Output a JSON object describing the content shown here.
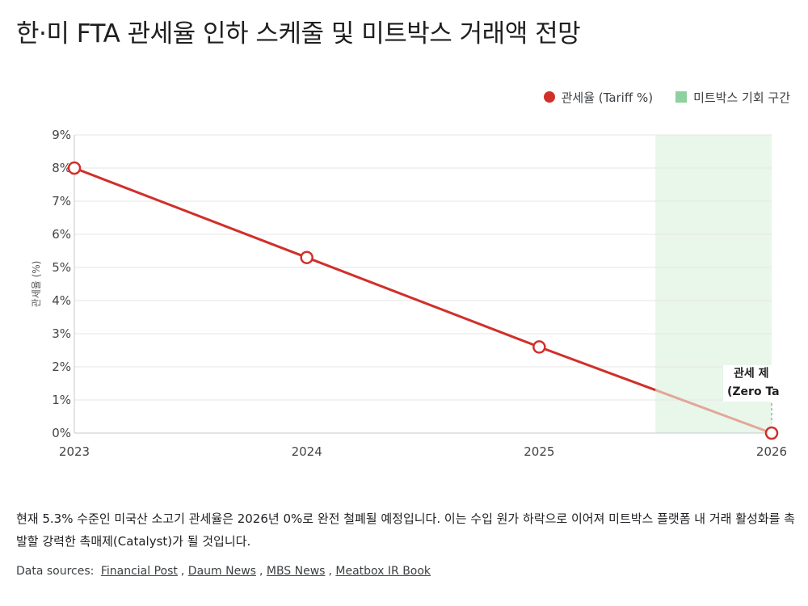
{
  "title": "한·미 FTA 관세율 인하 스케줄 및 미트박스 거래액 전망",
  "legend": {
    "series_label": "관세율 (Tariff %)",
    "zone_label": "미트박스 기회 구간"
  },
  "colors": {
    "line": "#d0302a",
    "line_faded": "#e0a89a",
    "zone": "#e9f6ea",
    "legend_zone": "#8fd19e",
    "grid": "#e6e6e6"
  },
  "chart_data": {
    "type": "line",
    "title": "",
    "xlabel": "",
    "ylabel": "관세율 (%)",
    "x": [
      2023,
      2024,
      2025,
      2026
    ],
    "series": [
      {
        "name": "관세율 (Tariff %)",
        "values": [
          8.0,
          5.3,
          2.6,
          0.0
        ]
      }
    ],
    "xlim": [
      2023,
      2026
    ],
    "ylim": [
      0,
      9
    ],
    "yticks": [
      "0%",
      "1%",
      "2%",
      "3%",
      "4%",
      "5%",
      "6%",
      "7%",
      "8%",
      "9%"
    ],
    "xticks": [
      "2023",
      "2024",
      "2025",
      "2026"
    ],
    "highlight_zone": {
      "label": "미트박스 기회 구간",
      "x_from": 2025.5,
      "x_to": 2026
    },
    "annotation": {
      "line1": "관세 제",
      "line2": "(Zero Ta",
      "x": 2026
    },
    "grid": true,
    "legend_position": "top-right"
  },
  "description": "현재 5.3% 수준인 미국산 소고기 관세율은 2026년 0%로 완전 철폐될 예정입니다. 이는 수입 원가 하락으로 이어져 미트박스 플랫폼 내 거래 활성화를 촉발할 강력한 촉매제(Catalyst)가 될 것입니다.",
  "sources": {
    "label": "Data sources:",
    "links": [
      "Financial Post",
      "Daum News",
      "MBS News",
      "Meatbox IR Book"
    ]
  }
}
